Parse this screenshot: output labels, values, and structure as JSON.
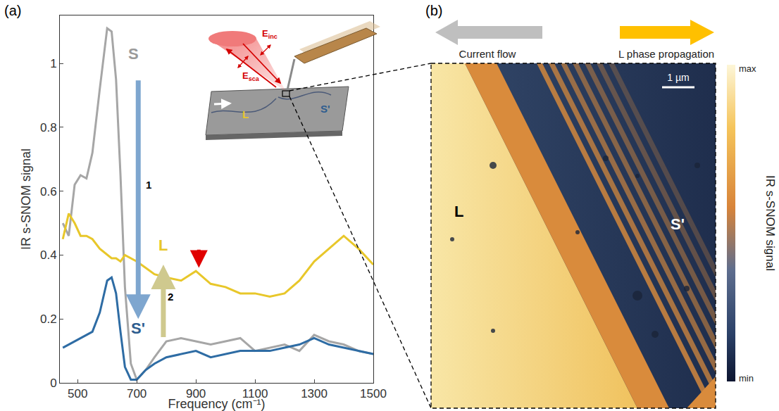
{
  "panels": {
    "a": "(a)",
    "b": "(b)"
  },
  "chart_data": {
    "type": "line",
    "x_label": "Frequency (cm⁻¹)",
    "y_label": "IR s-SNOM signal",
    "x": [
      450,
      470,
      490,
      510,
      530,
      550,
      575,
      600,
      615,
      630,
      645,
      660,
      680,
      700,
      730,
      760,
      800,
      850,
      900,
      950,
      1000,
      1050,
      1100,
      1150,
      1200,
      1250,
      1300,
      1350,
      1400,
      1450,
      1500
    ],
    "series": [
      {
        "name": "S",
        "color": "#a6a6a6",
        "values": [
          0.5,
          0.46,
          0.62,
          0.65,
          0.64,
          0.72,
          0.92,
          1.11,
          1.1,
          0.95,
          0.65,
          0.3,
          0.06,
          0.01,
          0.04,
          0.08,
          0.13,
          0.14,
          0.13,
          0.12,
          0.13,
          0.14,
          0.1,
          0.11,
          0.12,
          0.1,
          0.15,
          0.13,
          0.12,
          0.1,
          0.09
        ]
      },
      {
        "name": "L",
        "color": "#e8c72a",
        "values": [
          0.45,
          0.53,
          0.5,
          0.46,
          0.46,
          0.45,
          0.42,
          0.4,
          0.39,
          0.39,
          0.38,
          0.4,
          0.39,
          0.38,
          0.36,
          0.34,
          0.33,
          0.32,
          0.35,
          0.31,
          0.3,
          0.28,
          0.28,
          0.27,
          0.28,
          0.32,
          0.38,
          0.42,
          0.46,
          0.42,
          0.37
        ]
      },
      {
        "name": "S'",
        "color": "#2e6ca4",
        "values": [
          0.11,
          0.12,
          0.13,
          0.14,
          0.15,
          0.16,
          0.22,
          0.32,
          0.33,
          0.28,
          0.16,
          0.05,
          0.01,
          0.01,
          0.04,
          0.06,
          0.08,
          0.09,
          0.1,
          0.08,
          0.09,
          0.1,
          0.1,
          0.1,
          0.11,
          0.12,
          0.14,
          0.12,
          0.11,
          0.1,
          0.09
        ]
      }
    ],
    "xlim": [
      440,
      1500
    ],
    "ylim": [
      0,
      1.15
    ],
    "xticks": [
      500,
      700,
      900,
      1100,
      1300,
      1500
    ],
    "yticks": [
      0,
      0.2,
      0.4,
      0.6,
      0.8,
      1
    ],
    "grid": false,
    "annotations": [
      {
        "text": "1"
      },
      {
        "text": "2"
      }
    ]
  },
  "inset": {
    "E_inc": {
      "text": "E",
      "sub": "inc"
    },
    "E_sca": {
      "text": "E",
      "sub": "sca"
    },
    "left": "L",
    "right": "S'"
  },
  "image_panel": {
    "current": "Current flow",
    "propagation": "L phase propagation",
    "scale": "1 µm",
    "left": "L",
    "right": "S'",
    "colorbar": {
      "title": "IR s-SNOM signal",
      "max": "max",
      "min": "min"
    }
  }
}
